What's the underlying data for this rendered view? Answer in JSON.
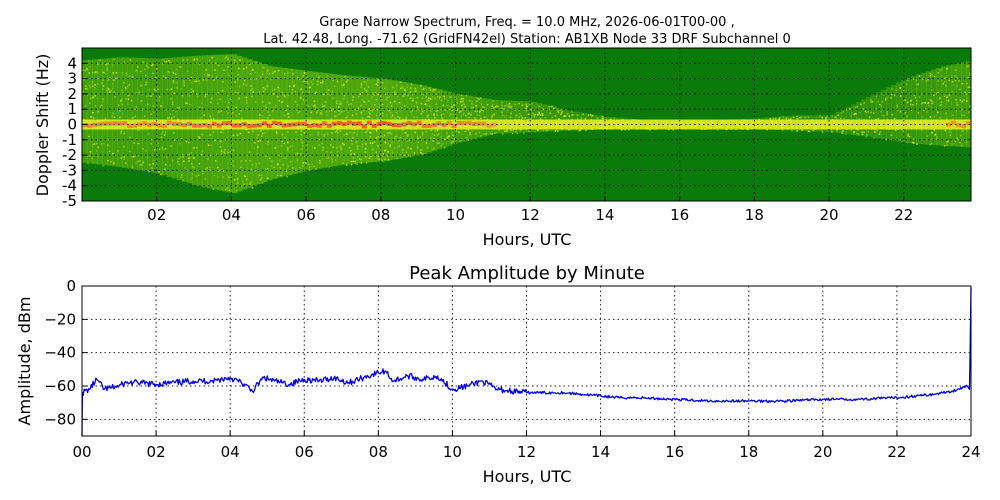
{
  "figure": {
    "title_line1": "Grape Narrow Spectrum, Freq. = 10.0 MHz, 2026-06-01T00-00 ,",
    "title_line2": "Lat.  42.48, Long. -71.62 (GridFN42el) Station: AB1XB Node 33 DRF Subchannel 0"
  },
  "chart_data": [
    {
      "type": "heatmap",
      "title": "",
      "xlabel": "Hours, UTC",
      "ylabel": "Doppler Shift (Hz)",
      "xlim": [
        0,
        23.8
      ],
      "ylim": [
        -5,
        5
      ],
      "xticks": [
        2,
        4,
        6,
        8,
        10,
        12,
        14,
        16,
        18,
        20,
        22
      ],
      "xtick_labels": [
        "02",
        "04",
        "06",
        "08",
        "10",
        "12",
        "14",
        "16",
        "18",
        "20",
        "22"
      ],
      "yticks": [
        -5,
        -4,
        -3,
        -2,
        -1,
        0,
        1,
        2,
        3,
        4
      ],
      "ytick_labels": [
        "-5",
        "-4",
        "-3",
        "-2",
        "-1",
        "0",
        "1",
        "2",
        "3",
        "4"
      ],
      "grid": true,
      "colors": {
        "background": "#0a7a0a",
        "low": "#2f9a10",
        "mid": "#d8e820",
        "high": "#ff3b1a"
      },
      "carrier_doppler_hz": 0,
      "band": {
        "hours": [
          0,
          1,
          2,
          3,
          4,
          5,
          6,
          7,
          8,
          9,
          10,
          11,
          12,
          13,
          14,
          15,
          16,
          17,
          18,
          19,
          20,
          21,
          22,
          23,
          23.8
        ],
        "upper_hz": [
          4.2,
          4.4,
          4.3,
          4.5,
          4.6,
          3.8,
          3.5,
          3.2,
          3.0,
          2.6,
          2.0,
          1.6,
          1.5,
          0.9,
          0.5,
          0.3,
          0.3,
          0.3,
          0.4,
          0.6,
          0.6,
          1.8,
          3.0,
          3.8,
          4.2
        ],
        "lower_hz": [
          -2.5,
          -2.8,
          -3.2,
          -4.0,
          -4.5,
          -3.6,
          -3.0,
          -2.6,
          -2.4,
          -2.0,
          -1.2,
          -0.6,
          -0.5,
          -0.4,
          -0.3,
          -0.3,
          -0.3,
          -0.3,
          -0.3,
          -0.4,
          -0.5,
          -0.8,
          -1.2,
          -1.4,
          -1.5
        ],
        "intensity": [
          0.55,
          0.55,
          0.5,
          0.6,
          0.7,
          0.75,
          0.7,
          0.75,
          0.8,
          0.65,
          0.55,
          0.45,
          0.35,
          0.25,
          0.2,
          0.15,
          0.12,
          0.12,
          0.12,
          0.15,
          0.18,
          0.22,
          0.3,
          0.45,
          0.5
        ]
      }
    },
    {
      "type": "line",
      "title": "Peak Amplitude by Minute",
      "xlabel": "Hours, UTC",
      "ylabel": "Amplitude, dBm",
      "xlim": [
        0,
        24
      ],
      "ylim": [
        -90,
        0
      ],
      "xticks": [
        0,
        2,
        4,
        6,
        8,
        10,
        12,
        14,
        16,
        18,
        20,
        22,
        24
      ],
      "xtick_labels": [
        "00",
        "02",
        "04",
        "06",
        "08",
        "10",
        "12",
        "14",
        "16",
        "18",
        "20",
        "22",
        "24"
      ],
      "yticks": [
        0,
        -20,
        -40,
        -60,
        -80
      ],
      "ytick_labels": [
        "0",
        "−20",
        "−40",
        "−60",
        "−80"
      ],
      "grid": true,
      "colors": {
        "line": "#0000ee"
      },
      "series": [
        {
          "name": "",
          "x": [
            0,
            0.01,
            0.2,
            0.4,
            0.6,
            0.8,
            1.0,
            1.2,
            1.5,
            2.0,
            2.5,
            3.0,
            3.5,
            4.0,
            4.3,
            4.6,
            4.9,
            5.2,
            5.6,
            6.0,
            6.4,
            6.8,
            7.2,
            7.6,
            8.0,
            8.2,
            8.4,
            8.8,
            9.2,
            9.6,
            10.0,
            10.4,
            10.8,
            11.2,
            11.6,
            12.0,
            12.5,
            13.0,
            13.5,
            14.0,
            14.5,
            15.0,
            16.0,
            17.0,
            18.0,
            19.0,
            20.0,
            21.0,
            22.0,
            23.0,
            23.5,
            23.9,
            23.96,
            24.0
          ],
          "y": [
            -90,
            -64,
            -62,
            -56,
            -62,
            -61,
            -60,
            -58,
            -58,
            -59,
            -58,
            -57,
            -57,
            -55,
            -58,
            -63,
            -55,
            -57,
            -59,
            -56,
            -57,
            -55,
            -58,
            -55,
            -52,
            -51,
            -57,
            -54,
            -56,
            -54,
            -62,
            -60,
            -57,
            -62,
            -63,
            -64,
            -64,
            -64,
            -65,
            -66,
            -67,
            -67,
            -68,
            -69,
            -69,
            -69,
            -68,
            -68,
            -67,
            -65,
            -63,
            -60,
            -62,
            -1
          ]
        }
      ]
    }
  ]
}
